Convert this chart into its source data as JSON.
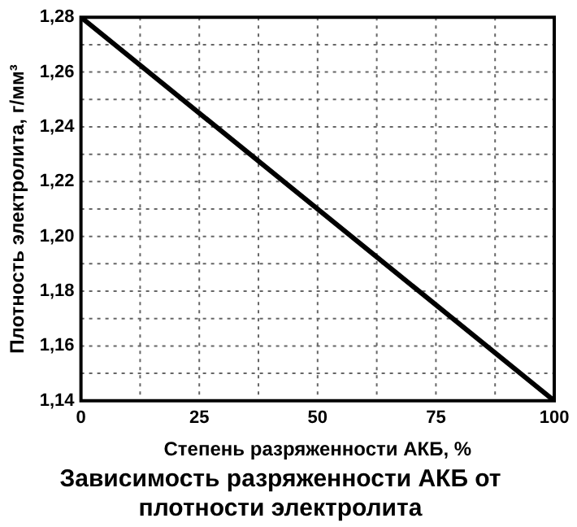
{
  "chart_data": {
    "type": "line",
    "title": "Зависимость разряженности АКБ от плотности электролита",
    "xlabel": "Степень разряженности АКБ, %",
    "ylabel": "Плотность электролита, г/мм³",
    "x": [
      0,
      100
    ],
    "series": [
      {
        "color": "#000000",
        "values": [
          1.28,
          1.14
        ]
      }
    ],
    "xlim": [
      0,
      100
    ],
    "xticks": [
      0,
      {
        "value": 12.5,
        "label": null
      },
      25,
      {
        "value": 37.5,
        "label": null
      },
      50,
      {
        "value": 62.5,
        "label": null
      },
      75,
      {
        "value": 87.5,
        "label": null
      },
      100
    ],
    "ylim": [
      1.14,
      1.28
    ],
    "yticks": [
      {
        "value": 1.14,
        "label": "1,14"
      },
      {
        "value": 1.15,
        "label": null
      },
      {
        "value": 1.16,
        "label": "1,16"
      },
      {
        "value": 1.17,
        "label": null
      },
      {
        "value": 1.18,
        "label": "1,18"
      },
      {
        "value": 1.19,
        "label": null
      },
      {
        "value": 1.2,
        "label": "1,20"
      },
      {
        "value": 1.21,
        "label": null
      },
      {
        "value": 1.22,
        "label": "1,22"
      },
      {
        "value": 1.23,
        "label": null
      },
      {
        "value": 1.24,
        "label": "1,24"
      },
      {
        "value": 1.25,
        "label": null
      },
      {
        "value": 1.26,
        "label": "1,26"
      },
      {
        "value": 1.27,
        "label": null
      },
      {
        "value": 1.28,
        "label": "1,28"
      }
    ],
    "grid": true,
    "legend": false,
    "marker": "none",
    "line_style": "solid"
  }
}
